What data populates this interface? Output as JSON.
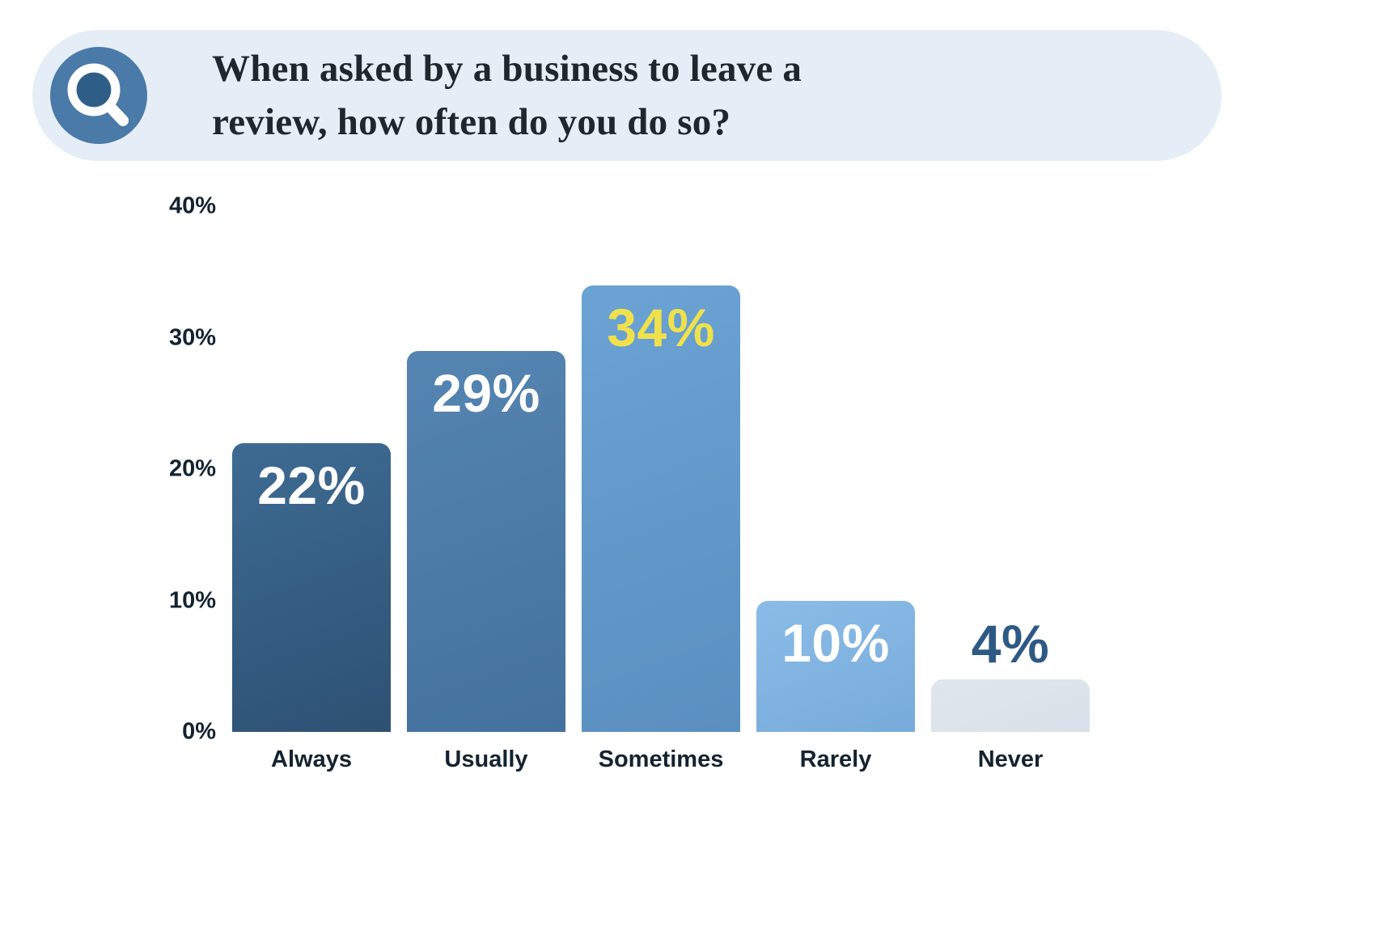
{
  "header": {
    "question_line1": "When asked by a business to leave a",
    "question_line2": "review, how often do you do so?",
    "pill_bg": "#e5eef7",
    "icon_bg": "#4a7aa8",
    "icon_inner": "#2e5d88",
    "icon_glyph": "#ffffff",
    "icon_name": "magnifier-icon"
  },
  "chart_data": {
    "type": "bar",
    "title": "When asked by a business to leave a review, how often do you do so?",
    "categories": [
      "Always",
      "Usually",
      "Sometimes",
      "Rarely",
      "Never"
    ],
    "values": [
      22,
      29,
      34,
      10,
      4
    ],
    "value_labels": [
      "22%",
      "29%",
      "34%",
      "10%",
      "4%"
    ],
    "xlabel": "",
    "ylabel": "",
    "ylim": [
      0,
      40
    ],
    "yticks": [
      "0%",
      "10%",
      "20%",
      "30%",
      "40%"
    ],
    "grid": false,
    "legend": "none",
    "bar_colors": [
      [
        "#3e6b93",
        "#2d5173"
      ],
      [
        "#5585b2",
        "#44719d"
      ],
      [
        "#6ba3d4",
        "#5a8fc0"
      ],
      [
        "#8abce7",
        "#77abdb"
      ],
      [
        "#dfe7ee",
        "#d8e1e9"
      ]
    ],
    "label_colors": [
      "#ffffff",
      "#ffffff",
      "#f0e14c",
      "#ffffff",
      "#2d5a85"
    ],
    "label_positions": [
      "inside",
      "inside",
      "inside",
      "inside",
      "above"
    ]
  }
}
